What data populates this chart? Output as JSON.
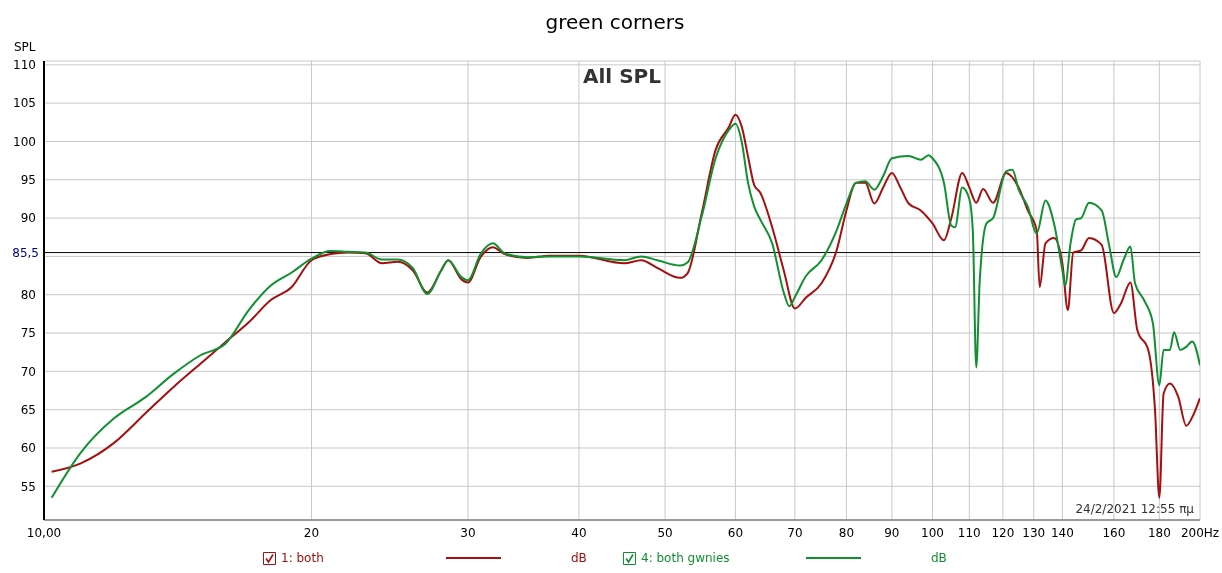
{
  "chart_data": {
    "type": "line",
    "title": "green corners",
    "ylabel": "SPL",
    "log": "x",
    "xlim": [
      10,
      200
    ],
    "ylim": [
      50.6,
      110.5
    ],
    "xticks": [
      {
        "value": 10,
        "label": "10,00"
      },
      20,
      30,
      40,
      50,
      60,
      70,
      80,
      90,
      100,
      110,
      120,
      130,
      140,
      160,
      180,
      {
        "value": 200,
        "label": "200Hz"
      }
    ],
    "yticks": [
      55,
      60,
      65,
      70,
      75,
      80,
      {
        "value": 85,
        "label": null
      },
      90,
      95,
      100,
      105,
      110
    ],
    "grid": true,
    "legend": "bottom",
    "marker": "none",
    "line_style": "solid",
    "ref_lines": [
      {
        "axis": "y",
        "value": 85.5,
        "label": "85,5",
        "color": "#000000"
      }
    ],
    "annotations": [
      "All SPL",
      "24/2/2021 12:55 πμ",
      "dB",
      "dB"
    ],
    "series": [
      {
        "name": "1: both",
        "color": "#a50f0f",
        "x": [
          10.2,
          11,
          12,
          13,
          14,
          15,
          16,
          17,
          18,
          19,
          20,
          21,
          22,
          23,
          24,
          25,
          26,
          27,
          28,
          28.5,
          29.5,
          30,
          31,
          32,
          33,
          35,
          37,
          40,
          45,
          47,
          49,
          52,
          53,
          55,
          57,
          59,
          60,
          61,
          62,
          63,
          64,
          66,
          68,
          70,
          72,
          75,
          78,
          80,
          82,
          84,
          86,
          88,
          90,
          92,
          94,
          97,
          100,
          103,
          105,
          108,
          110,
          112,
          114,
          117,
          121,
          125,
          128,
          131,
          132,
          134,
          137,
          140,
          142,
          144,
          147,
          150,
          155,
          160,
          163,
          167,
          170,
          175,
          178,
          180,
          182,
          185,
          189,
          193,
          196,
          200
        ],
        "values": [
          56.9,
          58.0,
          60.7,
          64.5,
          68,
          71.0,
          73.8,
          76.4,
          79.3,
          81.0,
          84.5,
          85.3,
          85.5,
          85.4,
          84.1,
          84.3,
          83.2,
          80.3,
          83.2,
          84.5,
          82.0,
          81.6,
          84.9,
          86.2,
          85.3,
          84.8,
          85.1,
          85.1,
          84.1,
          84.5,
          83.5,
          82.2,
          82.8,
          90.7,
          98.9,
          101.9,
          103.5,
          101.9,
          98.0,
          94.3,
          93.3,
          88.8,
          83.2,
          78.2,
          79.6,
          81.5,
          85.8,
          91.0,
          94.6,
          94.6,
          91.9,
          94,
          95.9,
          94,
          91.9,
          91,
          89.3,
          87.1,
          90.0,
          95.9,
          94,
          92.0,
          93.8,
          92.0,
          95.9,
          94,
          91,
          88.4,
          81.0,
          86.7,
          87.4,
          84.1,
          78,
          85.5,
          85.8,
          87.4,
          86.5,
          77.6,
          78.9,
          81.6,
          75.4,
          72.7,
          64.9,
          53.5,
          67.1,
          68.4,
          66.7,
          62.9,
          64,
          66.5
        ]
      },
      {
        "name": "4: both gwnies",
        "color": "#109030",
        "x": [
          10.2,
          11,
          12,
          13,
          14,
          15,
          16,
          17,
          18,
          19,
          20,
          21,
          22,
          23,
          24,
          25,
          26,
          27,
          28,
          28.5,
          29.5,
          30,
          31,
          32,
          33,
          35,
          37,
          40,
          45,
          47,
          49,
          52,
          53,
          55,
          57,
          59,
          60,
          61,
          62,
          63,
          64,
          66,
          68,
          69,
          70,
          72,
          75,
          78,
          80,
          82,
          84,
          86,
          88,
          90,
          94,
          97,
          99,
          100,
          103,
          105,
          106,
          108,
          110,
          111,
          112,
          113,
          115,
          117,
          121,
          123,
          125,
          128,
          131,
          134,
          137,
          140,
          141,
          143,
          145,
          147,
          150,
          155,
          158,
          161,
          164,
          167,
          169,
          173,
          177,
          180,
          182,
          185,
          187,
          190,
          193,
          196,
          200
        ],
        "values": [
          53.5,
          59.4,
          63.9,
          66.6,
          69.7,
          72.1,
          73.6,
          78,
          81.2,
          82.9,
          84.7,
          85.7,
          85.6,
          85.5,
          84.6,
          84.6,
          83.5,
          80.1,
          83.2,
          84.5,
          82.3,
          81.9,
          85.3,
          86.7,
          85.4,
          84.9,
          85.0,
          85.0,
          84.5,
          85.0,
          84.5,
          83.8,
          84.2,
          90.3,
          97.8,
          101.5,
          102.3,
          99.9,
          94.6,
          91.5,
          89.8,
          86.7,
          80.3,
          78.5,
          79.7,
          82.4,
          84.5,
          88.4,
          91.9,
          94.6,
          94.8,
          93.7,
          95.5,
          97.8,
          98.1,
          97.6,
          98.2,
          97.8,
          94.6,
          89,
          88.8,
          94.0,
          92.5,
          88.4,
          70.5,
          81.7,
          89.3,
          90.0,
          96.1,
          96.3,
          93.7,
          91.5,
          88.0,
          92.3,
          89.3,
          83.2,
          81.2,
          86.7,
          89.8,
          90,
          92,
          91.0,
          86.5,
          82.3,
          84.5,
          86.3,
          81.5,
          79.3,
          76.3,
          68.2,
          72.8,
          72.8,
          75.1,
          72.8,
          73.2,
          73.9,
          70.8
        ]
      }
    ]
  }
}
